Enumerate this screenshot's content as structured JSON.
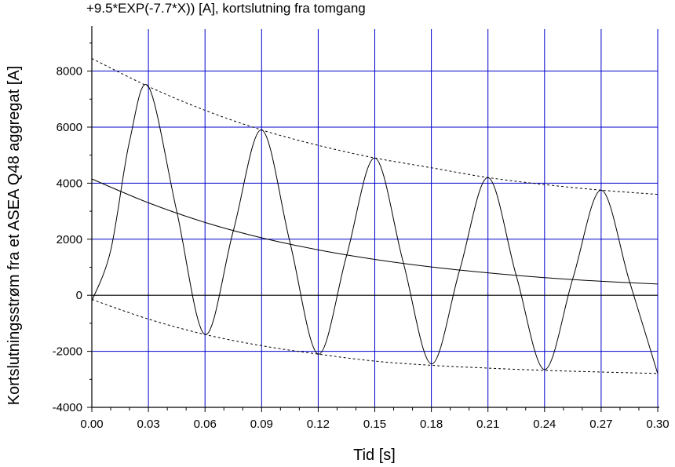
{
  "chart_data": {
    "type": "line",
    "title": "+9.5*EXP(-7.7*X)) [A], kortslutning fra tomgang",
    "xlabel": "Tid [s]",
    "ylabel": "Kortslutningsstrøm fra et ASEA Q48 aggregat [A]",
    "xlim": [
      0,
      0.3
    ],
    "ylim": [
      -4000,
      9500
    ],
    "grid": true,
    "grid_color": "#0000cc",
    "x_ticks": [
      "0.00",
      "0.03",
      "0.06",
      "0.09",
      "0.12",
      "0.15",
      "0.18",
      "0.21",
      "0.24",
      "0.27",
      "0.30"
    ],
    "y_ticks": [
      "-4000",
      "-2000",
      "0",
      "2000",
      "4000",
      "6000",
      "8000"
    ],
    "series": [
      {
        "style": "solid",
        "x": [
          0,
          0.01,
          0.02,
          0.03,
          0.045,
          0.06,
          0.075,
          0.09,
          0.105,
          0.12,
          0.135,
          0.15,
          0.165,
          0.18,
          0.195,
          0.21,
          0.225,
          0.24,
          0.255,
          0.27,
          0.285,
          0.3
        ],
        "y": [
          -200,
          1600,
          5500,
          7450,
          3000,
          -1400,
          2300,
          5900,
          1900,
          -2100,
          1400,
          4900,
          1200,
          -2450,
          900,
          4200,
          700,
          -2650,
          600,
          3750,
          500,
          -2800
        ]
      },
      {
        "style": "solid",
        "x": [
          0,
          0.03,
          0.06,
          0.09,
          0.12,
          0.15,
          0.18,
          0.21,
          0.24,
          0.27,
          0.3
        ],
        "y": [
          4150,
          3300,
          2600,
          2050,
          1620,
          1280,
          1010,
          800,
          630,
          500,
          400
        ]
      },
      {
        "style": "dashed",
        "x": [
          0,
          0.03,
          0.06,
          0.09,
          0.12,
          0.15,
          0.18,
          0.21,
          0.24,
          0.27,
          0.3
        ],
        "y": [
          8450,
          7450,
          6600,
          5900,
          5350,
          4900,
          4550,
          4200,
          3950,
          3750,
          3600
        ]
      },
      {
        "style": "dashed",
        "x": [
          0,
          0.03,
          0.06,
          0.09,
          0.12,
          0.15,
          0.18,
          0.21,
          0.24,
          0.27,
          0.3
        ],
        "y": [
          -150,
          -850,
          -1400,
          -1800,
          -2100,
          -2350,
          -2500,
          -2600,
          -2680,
          -2740,
          -2790
        ]
      }
    ]
  }
}
